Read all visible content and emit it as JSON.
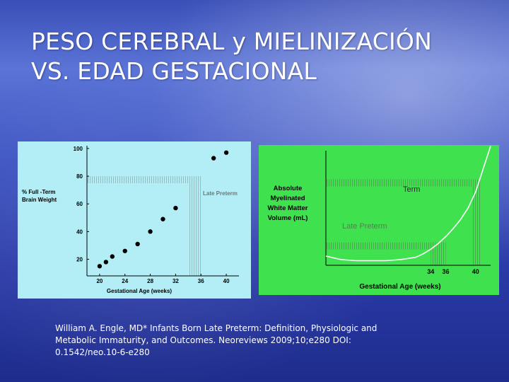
{
  "slide": {
    "title_line1": "PESO CEREBRAL y MIELINIZACIÓN",
    "title_line2": "VS. EDAD GESTACIONAL",
    "citation_lines": [
      "William A. Engle, MD* Infants Born Late Preterm: Definition, Physiologic and",
      "Metabolic Immaturity, and Outcomes. Neoreviews 2009;10;e280 DOI:",
      "0.1542/neo.10-6-e280"
    ],
    "colors": {
      "left_panel": "#b3eef6",
      "right_panel": "#3fe24e",
      "curve": "#ffffff",
      "points": "#000000"
    }
  },
  "chart_data": [
    {
      "type": "scatter",
      "ylabel_lines": [
        "% Full -Term",
        "Brain Weight"
      ],
      "xlabel": "Gestational Age (weeks)",
      "x_ticks": [
        20,
        24,
        28,
        32,
        36,
        40
      ],
      "y_ticks": [
        20,
        40,
        60,
        80,
        100
      ],
      "xlim": [
        18,
        42
      ],
      "ylim": [
        8,
        102
      ],
      "grid": false,
      "annotations": [
        {
          "text": "Late Preterm"
        }
      ],
      "shaded_band": {
        "x": [
          34,
          36
        ],
        "y_top": 80
      },
      "points": [
        {
          "x": 20,
          "y": 15
        },
        {
          "x": 21,
          "y": 18
        },
        {
          "x": 22,
          "y": 22
        },
        {
          "x": 24,
          "y": 26
        },
        {
          "x": 26,
          "y": 31
        },
        {
          "x": 28,
          "y": 40
        },
        {
          "x": 30,
          "y": 49
        },
        {
          "x": 32,
          "y": 57
        },
        {
          "x": 38,
          "y": 93
        },
        {
          "x": 40,
          "y": 97
        }
      ]
    },
    {
      "type": "line",
      "ylabel_lines": [
        "Absolute",
        "Myelinated",
        "White Matter",
        "Volume (mL)"
      ],
      "xlabel": "Gestational Age (weeks)",
      "x_ticks": [
        34,
        36,
        40
      ],
      "xlim": [
        20,
        42
      ],
      "ylim": [
        0,
        100
      ],
      "y_tick_labels_shown": false,
      "grid": false,
      "annotations": [
        {
          "text": "Term"
        },
        {
          "text": "Late Preterm"
        }
      ],
      "shaded_bands": [
        {
          "x": [
            34,
            36
          ],
          "y_top": 20
        },
        {
          "x": [
            40,
            40.5
          ],
          "y_top": 75
        }
      ],
      "series": [
        {
          "x": [
            20,
            22,
            24,
            26,
            28,
            30,
            32,
            33,
            34,
            35,
            36,
            37,
            38,
            39,
            40,
            41,
            42
          ],
          "y": [
            8,
            5,
            4,
            4,
            4,
            5,
            7,
            10,
            14,
            19,
            25,
            32,
            40,
            50,
            64,
            84,
            112
          ]
        }
      ]
    }
  ]
}
